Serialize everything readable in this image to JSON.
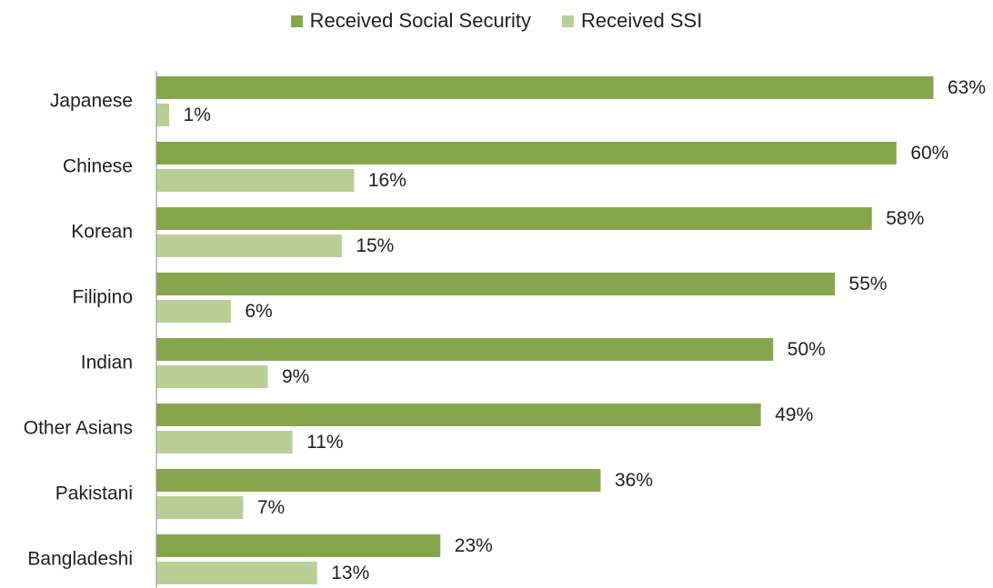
{
  "chart_data": {
    "type": "bar",
    "orientation": "horizontal",
    "categories": [
      "Japanese",
      "Chinese",
      "Korean",
      "Filipino",
      "Indian",
      "Other Asians",
      "Pakistani",
      "Bangladeshi"
    ],
    "series": [
      {
        "name": "Received Social Security",
        "color": "#86a64e",
        "values": [
          63,
          60,
          58,
          55,
          50,
          49,
          36,
          23
        ],
        "labels": [
          "63%",
          "60%",
          "58%",
          "55%",
          "50%",
          "49%",
          "36%",
          "23%"
        ]
      },
      {
        "name": "Received SSI",
        "color": "#b9cf96",
        "values": [
          1,
          16,
          15,
          6,
          9,
          11,
          7,
          13
        ],
        "labels": [
          "1%",
          "16%",
          "15%",
          "6%",
          "9%",
          "11%",
          "7%",
          "13%"
        ]
      }
    ],
    "xlim": [
      0,
      63
    ],
    "legend_position": "top",
    "grid": false
  }
}
